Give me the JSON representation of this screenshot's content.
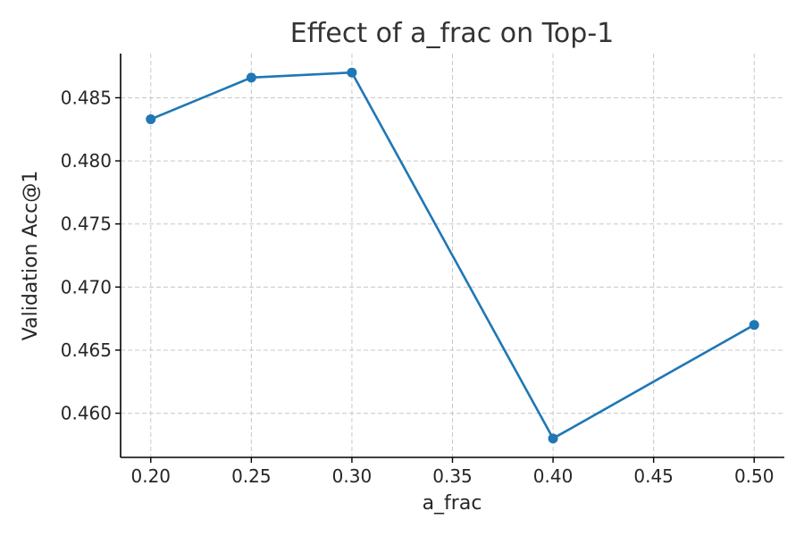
{
  "chart_data": {
    "type": "line",
    "title": "Effect of a_frac on Top-1",
    "xlabel": "a_frac",
    "ylabel": "Validation Acc@1",
    "x": [
      0.2,
      0.25,
      0.3,
      0.4,
      0.5
    ],
    "series": [
      {
        "y": [
          0.4833,
          0.4866,
          0.487,
          0.458,
          0.467
        ]
      }
    ],
    "xlim": [
      0.185,
      0.515
    ],
    "ylim": [
      0.4565,
      0.4885
    ],
    "xticks": [
      "0.20",
      "0.25",
      "0.30",
      "0.35",
      "0.40",
      "0.45",
      "0.50"
    ],
    "yticks": [
      "0.460",
      "0.465",
      "0.470",
      "0.475",
      "0.480",
      "0.485"
    ],
    "grid": true,
    "markers": true,
    "color": "#1f77b4"
  }
}
